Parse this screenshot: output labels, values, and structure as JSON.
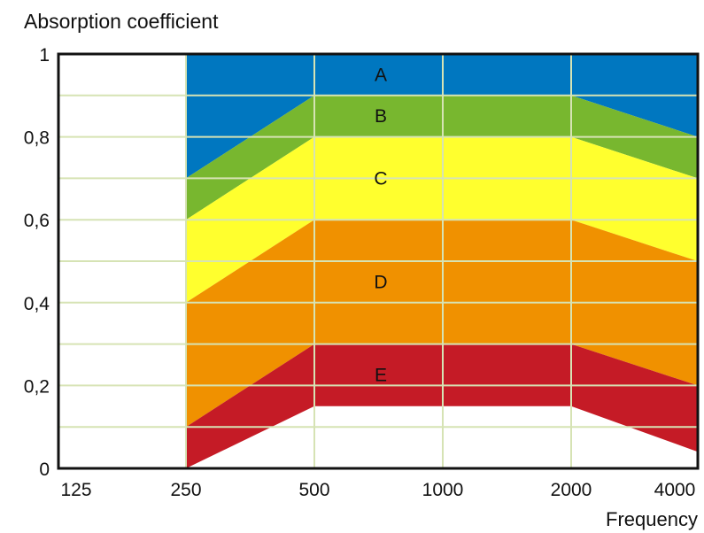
{
  "chart_data": {
    "type": "area",
    "title": "",
    "ylabel": "Absorption coefficient",
    "xlabel": "Frequency",
    "categories": [
      "125",
      "250",
      "500",
      "1000",
      "2000",
      "4000"
    ],
    "y_ticks": [
      "0",
      "0,2",
      "0,4",
      "0,6",
      "0,8",
      "1"
    ],
    "ylim": [
      0,
      1
    ],
    "y_tick_values": [
      0,
      0.2,
      0.4,
      0.6,
      0.8,
      1.0
    ],
    "grid": true,
    "bands": [
      {
        "name": "A",
        "color": "#0077c0",
        "upper": [
          1.0,
          1.0,
          1.0,
          1.0
        ],
        "lower": [
          0.7,
          0.9,
          0.9,
          0.8
        ]
      },
      {
        "name": "B",
        "color": "#78b72f",
        "upper": [
          0.7,
          0.9,
          0.9,
          0.8
        ],
        "lower": [
          0.6,
          0.8,
          0.8,
          0.7
        ]
      },
      {
        "name": "C",
        "color": "#ffff2e",
        "upper": [
          0.6,
          0.8,
          0.8,
          0.7
        ],
        "lower": [
          0.4,
          0.6,
          0.6,
          0.5
        ]
      },
      {
        "name": "D",
        "color": "#f09100",
        "upper": [
          0.4,
          0.6,
          0.6,
          0.5
        ],
        "lower": [
          0.1,
          0.3,
          0.3,
          0.2
        ]
      },
      {
        "name": "E",
        "color": "#c51b26",
        "upper": [
          0.1,
          0.3,
          0.3,
          0.2
        ],
        "lower": [
          0.0,
          0.15,
          0.15,
          0.04
        ]
      }
    ],
    "band_x": [
      "250",
      "500",
      "2000",
      "4000"
    ]
  }
}
